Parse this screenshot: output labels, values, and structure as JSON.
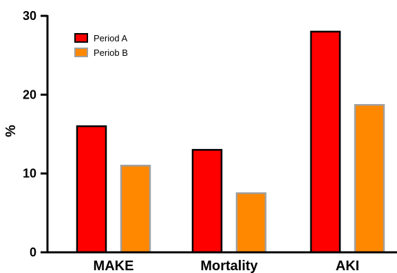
{
  "chart_data": {
    "type": "bar",
    "categories": [
      "MAKE",
      "Mortality",
      "AKI"
    ],
    "series": [
      {
        "name": "Period A",
        "values": [
          16,
          13,
          28
        ],
        "fill": "#ff0000",
        "stroke": "#000000"
      },
      {
        "name": "Periob B",
        "values": [
          11,
          7.5,
          18.7
        ],
        "fill": "#ff8800",
        "stroke": "#a0a0a0"
      }
    ],
    "xlabel": "",
    "ylabel": "%",
    "ylim": [
      0,
      30
    ],
    "yticks": [
      0,
      10,
      20,
      30
    ],
    "legend_position": "top-left",
    "grid": false
  }
}
